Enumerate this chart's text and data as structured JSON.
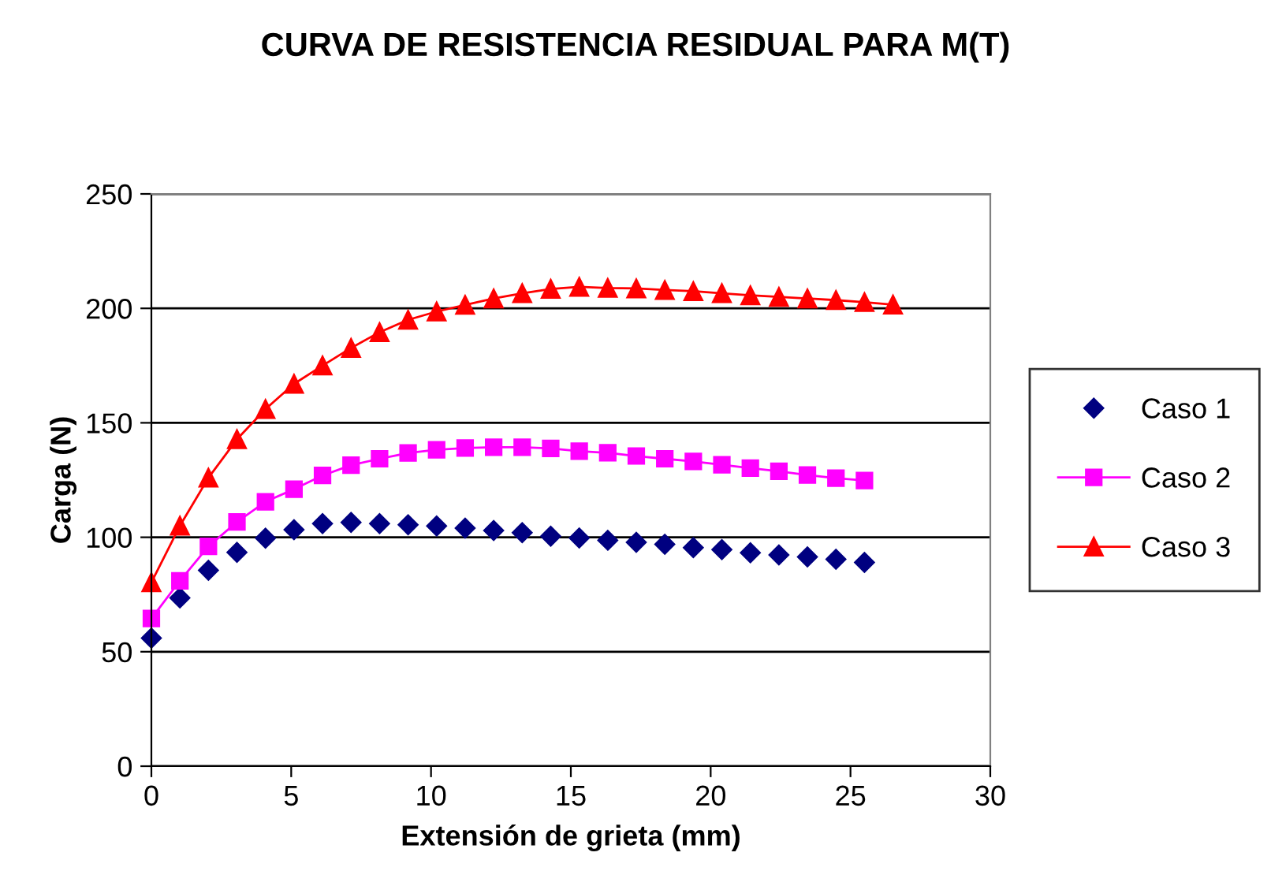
{
  "chart_data": {
    "type": "line",
    "title": "CURVA DE RESISTENCIA RESIDUAL PARA M(T)",
    "xlabel": "Extensión de grieta (mm)",
    "ylabel": "Carga (N)",
    "xlim": [
      0,
      30
    ],
    "xticks": [
      0,
      5,
      10,
      15,
      20,
      25,
      30
    ],
    "ylim": [
      0,
      250
    ],
    "yticks": [
      0,
      50,
      100,
      150,
      200,
      250
    ],
    "grid": "y",
    "legend": "right",
    "series": [
      {
        "name": "Caso 1",
        "type": "scatter",
        "marker": "diamond",
        "color": "#000080",
        "x": [
          0,
          1.02,
          2.04,
          3.06,
          4.08,
          5.1,
          6.12,
          7.14,
          8.16,
          9.18,
          10.2,
          11.22,
          12.24,
          13.26,
          14.28,
          15.3,
          16.32,
          17.34,
          18.36,
          19.38,
          20.4,
          21.42,
          22.44,
          23.46,
          24.48,
          25.5
        ],
        "values": [
          56,
          73.5,
          85.6,
          93.4,
          99.6,
          103.3,
          106,
          106.5,
          106,
          105.5,
          104.9,
          104,
          103,
          102,
          100.5,
          99.7,
          98.7,
          97.8,
          96.9,
          95.5,
          94.6,
          93.2,
          92.3,
          91.4,
          90.4,
          89
        ]
      },
      {
        "name": "Caso 2",
        "marker": "square",
        "color": "#ff00ff",
        "x": [
          0,
          1.02,
          2.04,
          3.06,
          4.08,
          5.1,
          6.12,
          7.14,
          8.16,
          9.18,
          10.2,
          11.22,
          12.24,
          13.26,
          14.28,
          15.3,
          16.32,
          17.34,
          18.36,
          19.38,
          20.4,
          21.42,
          22.44,
          23.46,
          24.48,
          25.5
        ],
        "values": [
          64.5,
          81,
          96,
          106.7,
          115.5,
          121,
          127,
          131.5,
          134.3,
          136.8,
          138.2,
          139,
          139.3,
          139.3,
          138.8,
          137.6,
          136.9,
          135.5,
          134.3,
          133.1,
          131.7,
          130.2,
          128.8,
          127.2,
          125.8,
          124.8
        ]
      },
      {
        "name": "Caso 3",
        "marker": "triangle",
        "color": "#ff0000",
        "x": [
          0,
          1.02,
          2.04,
          3.06,
          4.08,
          5.1,
          6.12,
          7.14,
          8.16,
          9.18,
          10.2,
          11.22,
          12.24,
          13.26,
          14.28,
          15.3,
          16.32,
          17.34,
          18.36,
          19.38,
          20.4,
          21.42,
          22.44,
          23.46,
          24.48,
          25.5,
          26.52
        ],
        "values": [
          80.3,
          105,
          126,
          142.8,
          156,
          167,
          175,
          182.7,
          189.6,
          195,
          198.6,
          201.5,
          204.3,
          206.6,
          208.5,
          209.4,
          208.9,
          208.7,
          208,
          207.5,
          206.6,
          205.7,
          205,
          204.3,
          203.6,
          202.7,
          201.6
        ]
      }
    ]
  }
}
